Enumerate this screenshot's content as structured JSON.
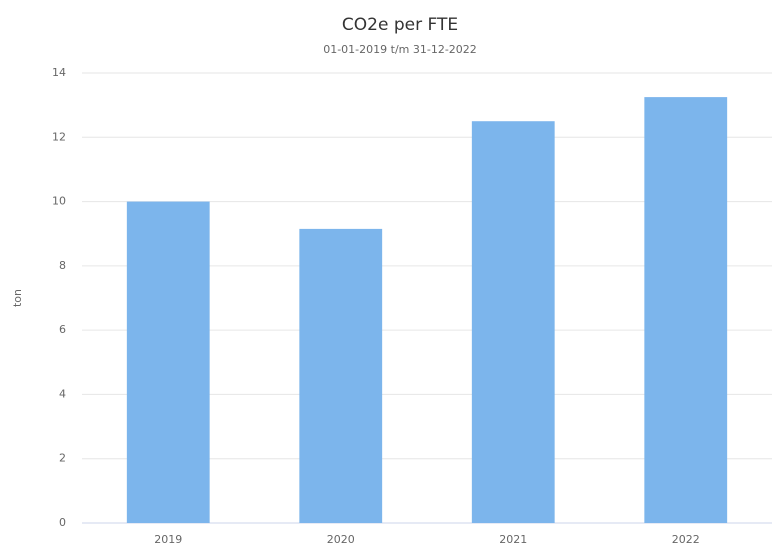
{
  "chart_data": {
    "type": "bar",
    "title": "CO2e per FTE",
    "subtitle": "01-01-2019 t/m 31-12-2022",
    "y_label": "ton",
    "categories": [
      "2019",
      "2020",
      "2021",
      "2022"
    ],
    "values": [
      10.0,
      9.15,
      12.5,
      13.25
    ],
    "color": "#7cb5ec",
    "ylim": [
      0,
      14
    ],
    "yticks": [
      0,
      2,
      4,
      6,
      8,
      10,
      12,
      14
    ],
    "grid": true
  }
}
